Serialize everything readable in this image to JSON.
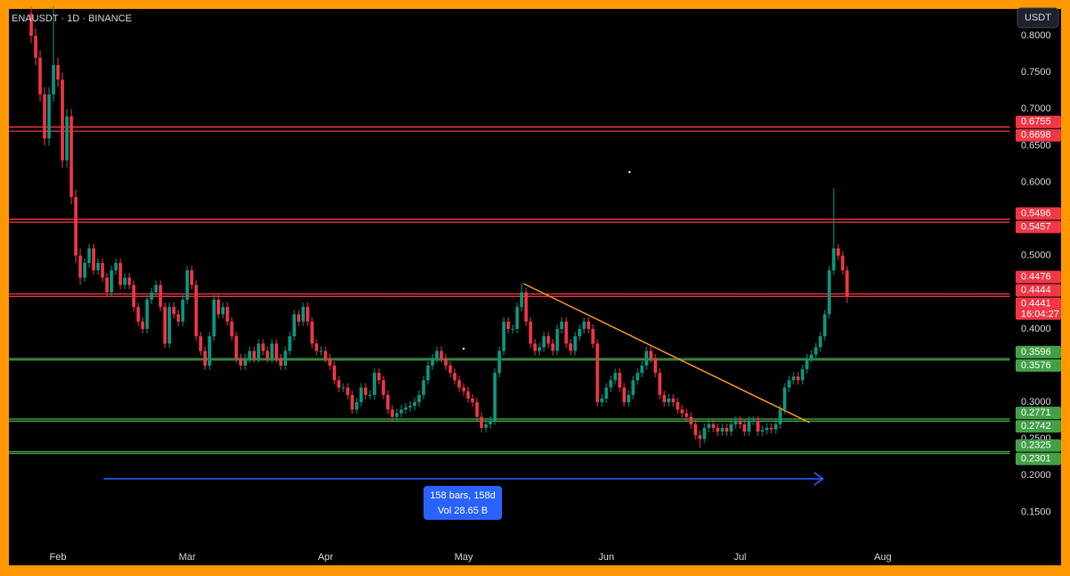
{
  "chart_data": {
    "type": "candlestick",
    "title": "ENAUSDT · 1D · BINANCE",
    "currency": "USDT",
    "up_color": "#089981",
    "down_color": "#f23645",
    "categories": [
      null,
      null,
      null,
      null,
      null,
      null,
      "Feb",
      null,
      null,
      null,
      null,
      null,
      null,
      null,
      null,
      null,
      null,
      null,
      null,
      null,
      null,
      null,
      null,
      null,
      null,
      null,
      null,
      null,
      null,
      null,
      null,
      null,
      null,
      null,
      null,
      "Mar",
      null,
      null,
      null,
      null,
      null,
      null,
      null,
      null,
      null,
      null,
      null,
      null,
      null,
      null,
      null,
      null,
      null,
      null,
      null,
      null,
      null,
      null,
      null,
      null,
      null,
      null,
      null,
      null,
      null,
      null,
      "Apr",
      null,
      null,
      null,
      null,
      null,
      null,
      null,
      null,
      null,
      null,
      null,
      null,
      null,
      null,
      null,
      null,
      null,
      null,
      null,
      null,
      null,
      null,
      null,
      null,
      null,
      null,
      null,
      null,
      null,
      null,
      "May",
      null,
      null,
      null,
      null,
      null,
      null,
      null,
      null,
      null,
      null,
      null,
      null,
      null,
      null,
      null,
      null,
      null,
      null,
      null,
      null,
      null,
      null,
      null,
      null,
      null,
      null,
      null,
      null,
      null,
      null,
      null,
      "Jun",
      null,
      null,
      null,
      null,
      null,
      null,
      null,
      null,
      null,
      null,
      null,
      null,
      null,
      null,
      null,
      null,
      null,
      null,
      null,
      null,
      null,
      null,
      null,
      null,
      null,
      null,
      null,
      null,
      null,
      "Jul",
      null,
      null,
      null,
      null,
      null,
      null,
      null,
      null,
      null,
      null,
      null,
      null,
      null,
      null,
      null,
      null,
      null,
      null,
      null,
      null,
      null,
      null,
      null,
      null,
      null,
      null,
      null,
      null,
      null,
      null,
      null,
      "Aug",
      null,
      null,
      null,
      null,
      null,
      null,
      null,
      null,
      null,
      null,
      null,
      null,
      null,
      null,
      null,
      null,
      null,
      null,
      null,
      null,
      null,
      null,
      null,
      null,
      null,
      null,
      null,
      null
    ],
    "open": [
      0.83,
      0.8,
      0.77,
      0.72,
      0.66,
      0.72,
      0.76,
      0.74,
      0.63,
      0.69,
      0.58,
      0.5,
      0.47,
      0.49,
      0.51,
      0.48,
      0.49,
      0.47,
      0.45,
      0.48,
      0.49,
      0.46,
      0.47,
      0.46,
      0.43,
      0.41,
      0.4,
      0.44,
      0.45,
      0.46,
      0.43,
      0.38,
      0.43,
      0.42,
      0.41,
      0.44,
      0.48,
      0.46,
      0.39,
      0.37,
      0.35,
      0.39,
      0.44,
      0.42,
      0.43,
      0.41,
      0.39,
      0.36,
      0.35,
      0.36,
      0.37,
      0.36,
      0.38,
      0.37,
      0.36,
      0.38,
      0.36,
      0.35,
      0.37,
      0.39,
      0.42,
      0.41,
      0.43,
      0.41,
      0.38,
      0.37,
      0.37,
      0.36,
      0.35,
      0.33,
      0.32,
      0.32,
      0.31,
      0.29,
      0.3,
      0.32,
      0.31,
      0.31,
      0.34,
      0.33,
      0.31,
      0.29,
      0.28,
      0.285,
      0.29,
      0.293,
      0.295,
      0.3,
      0.31,
      0.33,
      0.35,
      0.36,
      0.37,
      0.36,
      0.35,
      0.34,
      0.33,
      0.32,
      0.315,
      0.305,
      0.3,
      0.28,
      0.265,
      0.27,
      0.275,
      0.34,
      0.37,
      0.41,
      0.4,
      0.4,
      0.43,
      0.45,
      0.41,
      0.38,
      0.37,
      0.375,
      0.39,
      0.38,
      0.37,
      0.4,
      0.41,
      0.38,
      0.37,
      0.39,
      0.4,
      0.41,
      0.4,
      0.38,
      0.3,
      0.305,
      0.32,
      0.33,
      0.34,
      0.32,
      0.3,
      0.31,
      0.33,
      0.34,
      0.35,
      0.37,
      0.36,
      0.34,
      0.31,
      0.3,
      0.305,
      0.3,
      0.29,
      0.285,
      0.28,
      0.27,
      0.255,
      0.25,
      0.265,
      0.27,
      0.265,
      0.26,
      0.265,
      0.26,
      0.27,
      0.275,
      0.27,
      0.26,
      0.275,
      0.275,
      0.26,
      0.262,
      0.265,
      0.263,
      0.27,
      0.29,
      0.32,
      0.33,
      0.335,
      0.33,
      0.345,
      0.36,
      0.365,
      0.375,
      0.39,
      0.42,
      0.48,
      0.51,
      0.5,
      0.48,
      null,
      null,
      null,
      null,
      null,
      null,
      null,
      null,
      null,
      null,
      null,
      null,
      null,
      null,
      null,
      null,
      null,
      null,
      null,
      null,
      null,
      null,
      null,
      null,
      null,
      null,
      null,
      null,
      null,
      null,
      null,
      null,
      null,
      null,
      null,
      null
    ],
    "high": [
      0.84,
      0.81,
      0.78,
      0.73,
      0.73,
      0.84,
      0.77,
      0.75,
      0.7,
      0.7,
      0.59,
      0.51,
      0.496,
      0.516,
      0.516,
      0.496,
      0.496,
      0.476,
      0.486,
      0.496,
      0.496,
      0.476,
      0.476,
      0.466,
      0.436,
      0.416,
      0.446,
      0.456,
      0.466,
      0.466,
      0.436,
      0.436,
      0.436,
      0.426,
      0.446,
      0.486,
      0.486,
      0.466,
      0.396,
      0.376,
      0.396,
      0.446,
      0.446,
      0.436,
      0.436,
      0.416,
      0.396,
      0.366,
      0.366,
      0.376,
      0.376,
      0.386,
      0.386,
      0.376,
      0.386,
      0.386,
      0.366,
      0.376,
      0.396,
      0.426,
      0.426,
      0.436,
      0.436,
      0.416,
      0.386,
      0.376,
      0.376,
      0.366,
      0.356,
      0.336,
      0.326,
      0.326,
      0.316,
      0.306,
      0.326,
      0.326,
      0.316,
      0.346,
      0.346,
      0.336,
      0.316,
      0.296,
      0.291,
      0.296,
      0.299,
      0.301,
      0.306,
      0.316,
      0.336,
      0.356,
      0.366,
      0.376,
      0.376,
      0.366,
      0.356,
      0.346,
      0.336,
      0.326,
      0.321,
      0.311,
      0.306,
      0.286,
      0.276,
      0.281,
      0.346,
      0.376,
      0.416,
      0.416,
      0.406,
      0.436,
      0.462,
      0.456,
      0.416,
      0.386,
      0.381,
      0.396,
      0.396,
      0.386,
      0.406,
      0.416,
      0.416,
      0.386,
      0.396,
      0.406,
      0.416,
      0.416,
      0.406,
      0.386,
      0.311,
      0.326,
      0.336,
      0.346,
      0.346,
      0.326,
      0.316,
      0.336,
      0.346,
      0.356,
      0.376,
      0.376,
      0.366,
      0.346,
      0.316,
      0.311,
      0.311,
      0.306,
      0.296,
      0.291,
      0.286,
      0.276,
      0.261,
      0.271,
      0.276,
      0.276,
      0.271,
      0.271,
      0.271,
      0.276,
      0.281,
      0.281,
      0.276,
      0.281,
      0.281,
      0.281,
      0.268,
      0.271,
      0.271,
      0.276,
      0.296,
      0.326,
      0.336,
      0.341,
      0.341,
      0.351,
      0.366,
      0.371,
      0.381,
      0.396,
      0.426,
      0.486,
      0.592,
      0.516,
      0.506,
      0.486,
      null,
      null,
      null,
      null,
      null,
      null,
      null,
      null,
      null,
      null,
      null,
      null,
      null,
      null,
      null,
      null,
      null,
      null,
      null,
      null,
      null,
      null,
      null,
      null,
      null,
      null,
      null,
      null,
      null,
      null,
      null,
      null,
      null,
      null,
      null,
      null
    ],
    "low": [
      0.79,
      0.76,
      0.71,
      0.65,
      0.65,
      0.71,
      0.73,
      0.62,
      0.62,
      0.57,
      0.49,
      0.46,
      0.464,
      0.484,
      0.474,
      0.474,
      0.464,
      0.444,
      0.444,
      0.474,
      0.454,
      0.454,
      0.454,
      0.424,
      0.404,
      0.394,
      0.394,
      0.434,
      0.444,
      0.424,
      0.374,
      0.374,
      0.414,
      0.404,
      0.404,
      0.434,
      0.454,
      0.384,
      0.364,
      0.344,
      0.344,
      0.384,
      0.414,
      0.414,
      0.404,
      0.384,
      0.354,
      0.344,
      0.344,
      0.354,
      0.354,
      0.354,
      0.364,
      0.354,
      0.354,
      0.354,
      0.344,
      0.344,
      0.364,
      0.384,
      0.404,
      0.404,
      0.404,
      0.374,
      0.364,
      0.364,
      0.354,
      0.344,
      0.324,
      0.314,
      0.314,
      0.304,
      0.284,
      0.284,
      0.294,
      0.304,
      0.304,
      0.304,
      0.324,
      0.304,
      0.284,
      0.274,
      0.274,
      0.279,
      0.284,
      0.287,
      0.289,
      0.294,
      0.304,
      0.324,
      0.344,
      0.354,
      0.354,
      0.344,
      0.334,
      0.324,
      0.314,
      0.309,
      0.299,
      0.294,
      0.274,
      0.259,
      0.259,
      0.264,
      0.269,
      0.334,
      0.364,
      0.394,
      0.394,
      0.394,
      0.424,
      0.404,
      0.374,
      0.364,
      0.364,
      0.369,
      0.374,
      0.364,
      0.364,
      0.394,
      0.374,
      0.364,
      0.364,
      0.384,
      0.394,
      0.394,
      0.374,
      0.294,
      0.294,
      0.299,
      0.314,
      0.324,
      0.314,
      0.294,
      0.294,
      0.304,
      0.324,
      0.334,
      0.344,
      0.354,
      0.334,
      0.304,
      0.294,
      0.294,
      0.294,
      0.284,
      0.279,
      0.274,
      0.264,
      0.249,
      0.238,
      0.244,
      0.259,
      0.259,
      0.254,
      0.254,
      0.254,
      0.254,
      0.264,
      0.264,
      0.254,
      0.254,
      0.269,
      0.254,
      0.254,
      0.256,
      0.257,
      0.257,
      0.264,
      0.284,
      0.314,
      0.324,
      0.324,
      0.324,
      0.339,
      0.354,
      0.359,
      0.369,
      0.384,
      0.414,
      0.474,
      0.494,
      0.474,
      0.435,
      null,
      null,
      null,
      null,
      null,
      null,
      null,
      null,
      null,
      null,
      null,
      null,
      null,
      null,
      null,
      null,
      null,
      null,
      null,
      null,
      null,
      null,
      null,
      null,
      null,
      null,
      null,
      null,
      null,
      null,
      null,
      null,
      null,
      null,
      null,
      null
    ],
    "close": [
      0.8,
      0.77,
      0.72,
      0.66,
      0.72,
      0.76,
      0.74,
      0.63,
      0.69,
      0.58,
      0.5,
      0.47,
      0.49,
      0.51,
      0.48,
      0.49,
      0.47,
      0.45,
      0.48,
      0.49,
      0.46,
      0.47,
      0.46,
      0.43,
      0.41,
      0.4,
      0.44,
      0.45,
      0.46,
      0.43,
      0.38,
      0.43,
      0.42,
      0.41,
      0.44,
      0.48,
      0.46,
      0.39,
      0.37,
      0.35,
      0.39,
      0.44,
      0.42,
      0.43,
      0.41,
      0.39,
      0.36,
      0.35,
      0.36,
      0.37,
      0.36,
      0.38,
      0.37,
      0.36,
      0.38,
      0.36,
      0.35,
      0.37,
      0.39,
      0.42,
      0.41,
      0.43,
      0.41,
      0.38,
      0.37,
      0.37,
      0.36,
      0.35,
      0.33,
      0.32,
      0.32,
      0.31,
      0.29,
      0.3,
      0.32,
      0.31,
      0.31,
      0.34,
      0.33,
      0.31,
      0.29,
      0.28,
      0.285,
      0.29,
      0.293,
      0.295,
      0.3,
      0.31,
      0.33,
      0.35,
      0.36,
      0.37,
      0.36,
      0.35,
      0.34,
      0.33,
      0.32,
      0.315,
      0.305,
      0.3,
      0.28,
      0.265,
      0.27,
      0.275,
      0.34,
      0.37,
      0.41,
      0.4,
      0.4,
      0.43,
      0.45,
      0.41,
      0.38,
      0.37,
      0.375,
      0.39,
      0.38,
      0.37,
      0.4,
      0.41,
      0.38,
      0.37,
      0.39,
      0.4,
      0.41,
      0.4,
      0.38,
      0.3,
      0.305,
      0.32,
      0.33,
      0.34,
      0.32,
      0.3,
      0.31,
      0.33,
      0.34,
      0.35,
      0.37,
      0.36,
      0.34,
      0.31,
      0.3,
      0.305,
      0.3,
      0.29,
      0.285,
      0.28,
      0.27,
      0.255,
      0.25,
      0.265,
      0.27,
      0.265,
      0.26,
      0.265,
      0.26,
      0.27,
      0.275,
      0.27,
      0.26,
      0.275,
      0.275,
      0.26,
      0.262,
      0.265,
      0.263,
      0.27,
      0.29,
      0.32,
      0.33,
      0.335,
      0.33,
      0.345,
      0.36,
      0.365,
      0.375,
      0.39,
      0.42,
      0.48,
      0.51,
      0.5,
      0.48,
      0.4441,
      null,
      null,
      null,
      null,
      null,
      null,
      null,
      null,
      null,
      null,
      null,
      null,
      null,
      null,
      null,
      null,
      null,
      null,
      null,
      null,
      null,
      null,
      null,
      null,
      null,
      null,
      null,
      null,
      null,
      null,
      null,
      null,
      null,
      null,
      null,
      null
    ],
    "ylim": [
      0.1,
      0.85
    ],
    "yticks": [
      {
        "value": 0.8,
        "label": "0.8000"
      },
      {
        "value": 0.75,
        "label": "0.7500"
      },
      {
        "value": 0.7,
        "label": "0.7000"
      },
      {
        "value": 0.65,
        "label": "0.6500"
      },
      {
        "value": 0.6,
        "label": "0.6000"
      },
      {
        "value": 0.5,
        "label": "0.5000"
      },
      {
        "value": 0.4,
        "label": "0.4000"
      },
      {
        "value": 0.3,
        "label": "0.3000"
      },
      {
        "value": 0.25,
        "label": "0.2500"
      },
      {
        "value": 0.2,
        "label": "0.2000"
      },
      {
        "value": 0.15,
        "label": "0.1500"
      }
    ],
    "grid": false,
    "levels": [
      {
        "value": 0.6755,
        "color": "#f23645"
      },
      {
        "value": 0.6698,
        "color": "#f23645"
      },
      {
        "value": 0.5496,
        "color": "#f23645"
      },
      {
        "value": 0.5457,
        "color": "#f23645"
      },
      {
        "value": 0.4476,
        "color": "#f23645"
      },
      {
        "value": 0.4444,
        "color": "#f23645"
      },
      {
        "value": 0.3596,
        "color": "#43a047"
      },
      {
        "value": 0.3576,
        "color": "#43a047"
      },
      {
        "value": 0.2771,
        "color": "#43a047"
      },
      {
        "value": 0.2742,
        "color": "#43a047"
      },
      {
        "value": 0.2325,
        "color": "#43a047"
      },
      {
        "value": 0.2301,
        "color": "#43a047"
      }
    ],
    "last_price": 0.4441,
    "last_price_color": "#f23645",
    "countdown": "16:04:27",
    "annotations": [
      "158 bars, 158d",
      "Vol 28.65 B"
    ]
  }
}
